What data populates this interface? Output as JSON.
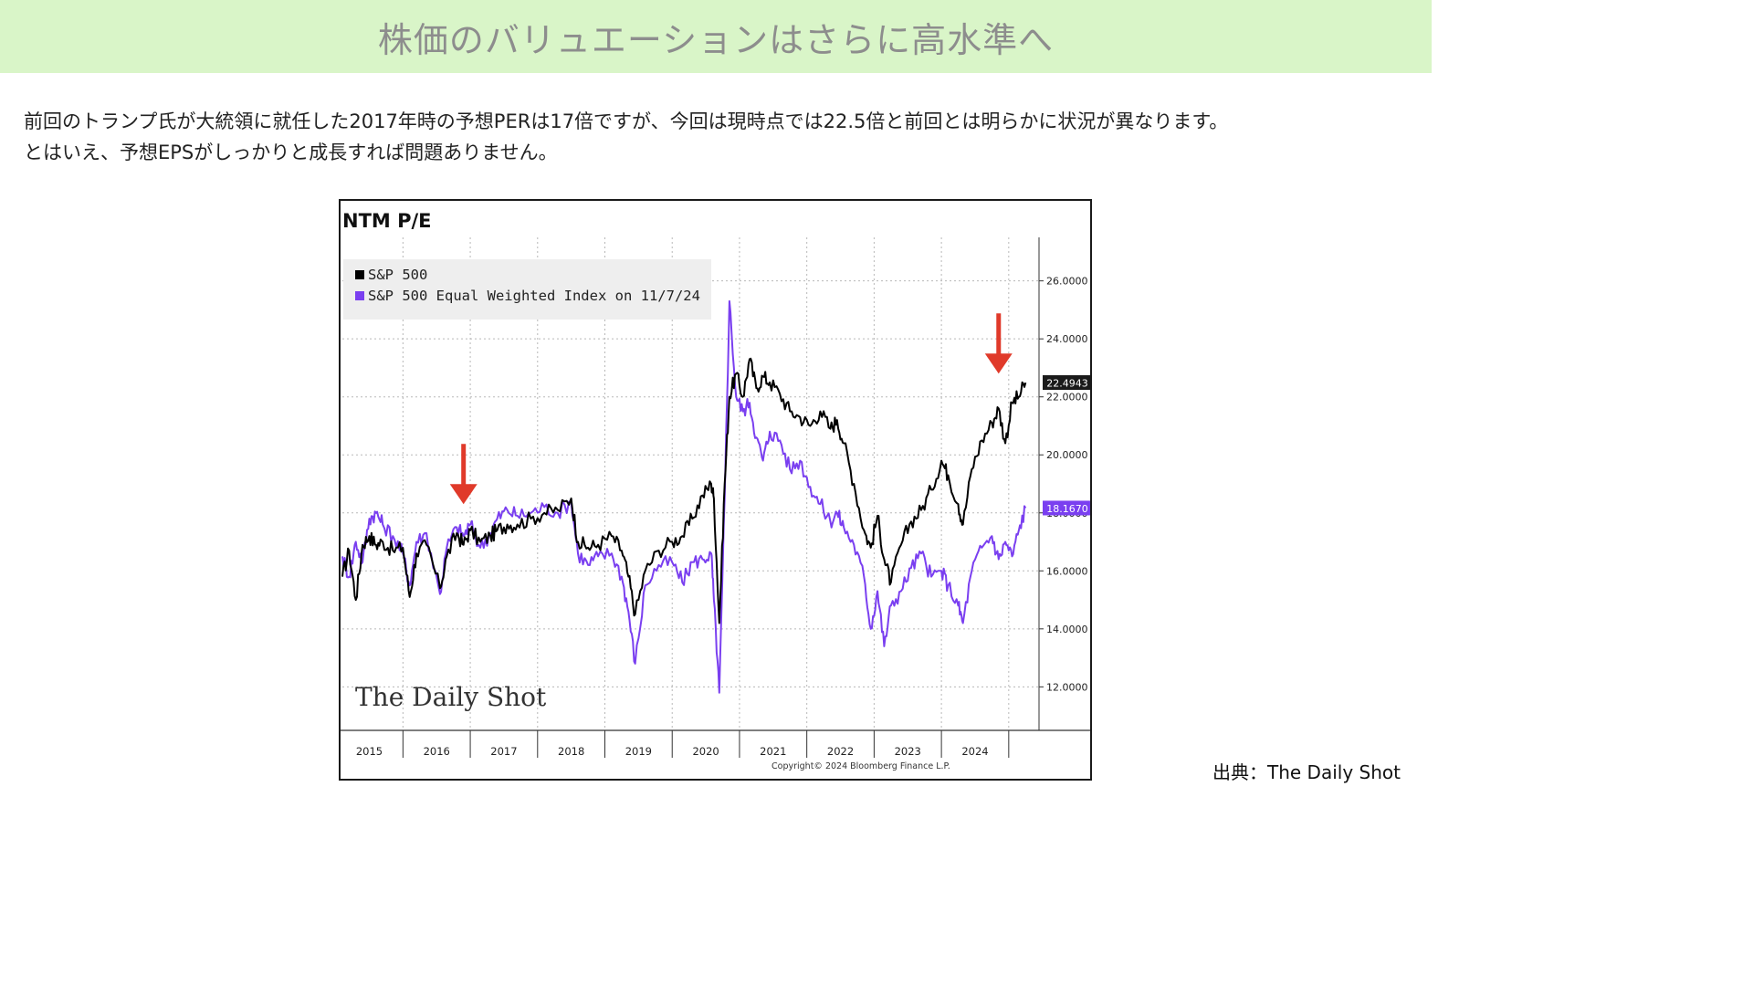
{
  "banner": {
    "title": "株価のバリュエーションはさらに高水準へ"
  },
  "body": {
    "line1": "前回のトランプ氏が大統領に就任した2017年時の予想PERは17倍ですが、今回は現時点では22.5倍と前回とは明らかに状況が異なります。",
    "line2": "とはいえ、予想EPSがしっかりと成長すれば問題ありません。"
  },
  "source": "出典：The Daily Shot",
  "colors": {
    "banner_bg": "#d9f5c8",
    "series_sp500": "#000000",
    "series_equal": "#7a3ff0",
    "arrow": "#e03a2a"
  },
  "watermark": "The Daily Shot",
  "copyright": "Copyright© 2024 Bloomberg Finance L.P.",
  "chart_data": {
    "type": "line",
    "title": "NTM P/E",
    "xlabel": "",
    "ylabel": "",
    "x_ticks": [
      "2015",
      "2016",
      "2017",
      "2018",
      "2019",
      "2020",
      "2021",
      "2022",
      "2023",
      "2024"
    ],
    "y_ticks": [
      "12.0000",
      "14.0000",
      "16.0000",
      "18.0000",
      "20.0000",
      "22.0000",
      "24.0000",
      "26.0000"
    ],
    "xlim": [
      2014.6,
      2024.95
    ],
    "ylim": [
      10.5,
      27.5
    ],
    "grid": true,
    "y_axis_side": "right",
    "legend_position": "top-left",
    "last_value_labels": [
      {
        "series": "S&P 500",
        "value": 22.4943,
        "label": "22.4943"
      },
      {
        "series": "S&P 500 Equal Weighted Index on 11/7/24",
        "value": 18.167,
        "label": "18.1670"
      }
    ],
    "annotations": [
      {
        "type": "arrow-down",
        "x": 2016.4,
        "y": 18.3
      },
      {
        "type": "arrow-down",
        "x": 2024.35,
        "y": 22.8
      }
    ],
    "series": [
      {
        "name": "S&P 500",
        "color": "#000000",
        "points": [
          [
            2014.6,
            15.8
          ],
          [
            2014.7,
            16.7
          ],
          [
            2014.8,
            15.0
          ],
          [
            2014.9,
            16.9
          ],
          [
            2015.0,
            17.2
          ],
          [
            2015.1,
            16.9
          ],
          [
            2015.2,
            17.0
          ],
          [
            2015.35,
            16.7
          ],
          [
            2015.5,
            16.8
          ],
          [
            2015.6,
            15.1
          ],
          [
            2015.7,
            16.6
          ],
          [
            2015.85,
            16.9
          ],
          [
            2016.05,
            15.4
          ],
          [
            2016.15,
            16.5
          ],
          [
            2016.3,
            17.3
          ],
          [
            2016.4,
            16.9
          ],
          [
            2016.5,
            17.4
          ],
          [
            2016.65,
            17.0
          ],
          [
            2016.8,
            17.2
          ],
          [
            2016.9,
            17.4
          ],
          [
            2017.05,
            17.6
          ],
          [
            2017.2,
            17.6
          ],
          [
            2017.4,
            17.8
          ],
          [
            2017.6,
            18.0
          ],
          [
            2017.8,
            18.1
          ],
          [
            2018.0,
            18.5
          ],
          [
            2018.1,
            17.0
          ],
          [
            2018.25,
            16.8
          ],
          [
            2018.4,
            16.9
          ],
          [
            2018.6,
            17.2
          ],
          [
            2018.75,
            16.7
          ],
          [
            2018.85,
            15.8
          ],
          [
            2018.95,
            14.5
          ],
          [
            2019.1,
            16.0
          ],
          [
            2019.3,
            16.7
          ],
          [
            2019.5,
            17.0
          ],
          [
            2019.65,
            17.2
          ],
          [
            2019.8,
            17.8
          ],
          [
            2019.95,
            18.6
          ],
          [
            2020.08,
            19.0
          ],
          [
            2020.12,
            18.5
          ],
          [
            2020.2,
            14.2
          ],
          [
            2020.28,
            19.0
          ],
          [
            2020.35,
            22.0
          ],
          [
            2020.45,
            22.8
          ],
          [
            2020.55,
            22.0
          ],
          [
            2020.65,
            23.3
          ],
          [
            2020.75,
            22.3
          ],
          [
            2020.85,
            22.7
          ],
          [
            2020.95,
            22.5
          ],
          [
            2021.1,
            22.1
          ],
          [
            2021.25,
            21.5
          ],
          [
            2021.4,
            21.3
          ],
          [
            2021.55,
            21.0
          ],
          [
            2021.7,
            21.5
          ],
          [
            2021.85,
            20.9
          ],
          [
            2021.95,
            21.2
          ],
          [
            2022.05,
            20.4
          ],
          [
            2022.2,
            19.0
          ],
          [
            2022.35,
            17.4
          ],
          [
            2022.45,
            16.8
          ],
          [
            2022.55,
            17.9
          ],
          [
            2022.65,
            16.4
          ],
          [
            2022.75,
            15.6
          ],
          [
            2022.9,
            16.9
          ],
          [
            2023.05,
            17.7
          ],
          [
            2023.2,
            18.1
          ],
          [
            2023.35,
            18.8
          ],
          [
            2023.5,
            19.8
          ],
          [
            2023.6,
            19.3
          ],
          [
            2023.75,
            18.3
          ],
          [
            2023.82,
            17.6
          ],
          [
            2023.95,
            19.5
          ],
          [
            2024.1,
            20.5
          ],
          [
            2024.25,
            21.1
          ],
          [
            2024.35,
            21.6
          ],
          [
            2024.45,
            20.4
          ],
          [
            2024.55,
            21.8
          ],
          [
            2024.65,
            22.0
          ],
          [
            2024.75,
            22.49
          ]
        ]
      },
      {
        "name": "S&P 500 Equal Weighted Index on 11/7/24",
        "color": "#7a3ff0",
        "points": [
          [
            2014.6,
            16.5
          ],
          [
            2014.7,
            15.8
          ],
          [
            2014.8,
            17.0
          ],
          [
            2014.9,
            16.3
          ],
          [
            2015.0,
            17.8
          ],
          [
            2015.1,
            18.0
          ],
          [
            2015.2,
            17.6
          ],
          [
            2015.35,
            17.2
          ],
          [
            2015.5,
            16.6
          ],
          [
            2015.6,
            15.5
          ],
          [
            2015.7,
            17.0
          ],
          [
            2015.85,
            17.3
          ],
          [
            2016.05,
            15.2
          ],
          [
            2016.15,
            16.8
          ],
          [
            2016.3,
            17.5
          ],
          [
            2016.4,
            17.2
          ],
          [
            2016.5,
            17.6
          ],
          [
            2016.65,
            16.8
          ],
          [
            2016.8,
            17.3
          ],
          [
            2016.9,
            17.8
          ],
          [
            2017.05,
            18.1
          ],
          [
            2017.2,
            17.9
          ],
          [
            2017.4,
            18.0
          ],
          [
            2017.6,
            18.2
          ],
          [
            2017.8,
            18.0
          ],
          [
            2018.0,
            18.4
          ],
          [
            2018.1,
            16.6
          ],
          [
            2018.25,
            16.2
          ],
          [
            2018.4,
            16.5
          ],
          [
            2018.6,
            16.6
          ],
          [
            2018.75,
            15.8
          ],
          [
            2018.85,
            14.6
          ],
          [
            2018.95,
            12.8
          ],
          [
            2019.1,
            15.5
          ],
          [
            2019.3,
            16.2
          ],
          [
            2019.5,
            16.3
          ],
          [
            2019.65,
            15.6
          ],
          [
            2019.8,
            16.3
          ],
          [
            2019.95,
            16.4
          ],
          [
            2020.08,
            16.6
          ],
          [
            2020.12,
            15.0
          ],
          [
            2020.2,
            11.8
          ],
          [
            2020.28,
            18.5
          ],
          [
            2020.35,
            25.3
          ],
          [
            2020.45,
            22.0
          ],
          [
            2020.55,
            21.5
          ],
          [
            2020.65,
            21.8
          ],
          [
            2020.75,
            20.6
          ],
          [
            2020.85,
            19.8
          ],
          [
            2020.95,
            20.8
          ],
          [
            2021.1,
            20.5
          ],
          [
            2021.25,
            19.5
          ],
          [
            2021.4,
            19.8
          ],
          [
            2021.55,
            18.9
          ],
          [
            2021.7,
            18.3
          ],
          [
            2021.85,
            17.7
          ],
          [
            2021.95,
            18.0
          ],
          [
            2022.05,
            17.5
          ],
          [
            2022.2,
            16.9
          ],
          [
            2022.35,
            15.8
          ],
          [
            2022.45,
            14.0
          ],
          [
            2022.55,
            15.3
          ],
          [
            2022.65,
            13.4
          ],
          [
            2022.75,
            14.8
          ],
          [
            2022.9,
            15.3
          ],
          [
            2023.05,
            16.1
          ],
          [
            2023.2,
            16.6
          ],
          [
            2023.35,
            15.8
          ],
          [
            2023.5,
            16.0
          ],
          [
            2023.6,
            15.5
          ],
          [
            2023.75,
            14.8
          ],
          [
            2023.82,
            14.2
          ],
          [
            2023.95,
            16.0
          ],
          [
            2024.1,
            16.8
          ],
          [
            2024.25,
            17.2
          ],
          [
            2024.35,
            16.4
          ],
          [
            2024.45,
            17.0
          ],
          [
            2024.55,
            16.5
          ],
          [
            2024.65,
            17.4
          ],
          [
            2024.75,
            18.167
          ]
        ]
      }
    ]
  }
}
